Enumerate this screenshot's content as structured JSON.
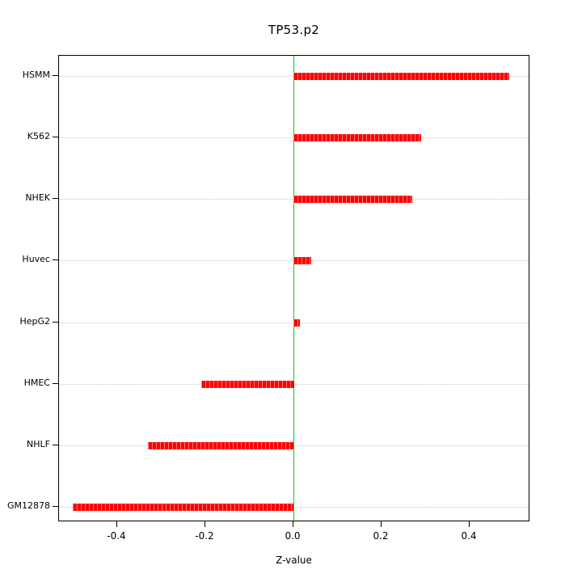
{
  "title": "TP53.p2",
  "chart_data": {
    "type": "bar",
    "orientation": "horizontal",
    "title": "TP53.p2",
    "xlabel": "Z-value",
    "ylabel": "",
    "categories": [
      "HSMM",
      "K562",
      "NHEK",
      "Huvec",
      "HepG2",
      "HMEC",
      "NHLF",
      "GM12878"
    ],
    "values": [
      0.49,
      0.29,
      0.27,
      0.04,
      0.015,
      -0.21,
      -0.33,
      -0.5
    ],
    "xlim": [
      -0.532,
      0.537
    ],
    "xticks": [
      -0.4,
      -0.2,
      0.0,
      0.2,
      0.4
    ],
    "xtick_labels": [
      "-0.4",
      "-0.2",
      "0.0",
      "0.2",
      "0.4"
    ],
    "zero_line": 0,
    "grid": "dotted-horizontal-per-category",
    "legend": "none",
    "colors": {
      "bar": "#ff0000",
      "zero_line": "#00d900",
      "grid": "#c8c8c8",
      "frame": "#000000",
      "background": "#ffffff"
    }
  }
}
